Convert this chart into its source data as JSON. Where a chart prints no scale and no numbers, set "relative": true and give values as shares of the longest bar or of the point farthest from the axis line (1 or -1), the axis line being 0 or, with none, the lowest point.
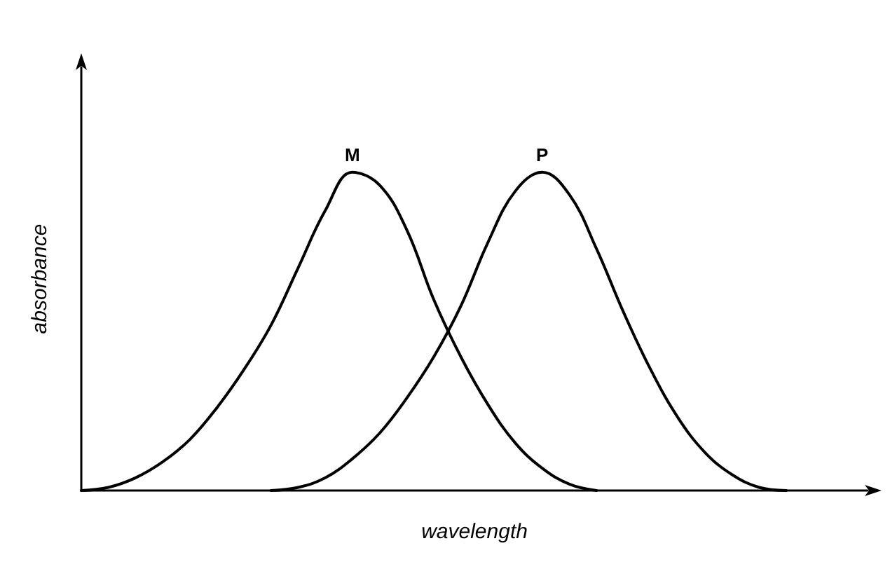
{
  "chart_data": {
    "type": "line",
    "xlabel": "wavelength",
    "ylabel": "absorbance",
    "relative": true,
    "legend": false,
    "grid": false,
    "marker": "none",
    "line_style": "solid",
    "categories": [
      null,
      null,
      null,
      null,
      null,
      null,
      null,
      null,
      null,
      null,
      null,
      null,
      null,
      null,
      null,
      null,
      null,
      null,
      null,
      null,
      null,
      null,
      null,
      null,
      null,
      null,
      null,
      null,
      null,
      null
    ],
    "series": [
      {
        "name": "M",
        "color": "#000000",
        "values": [
          0,
          0.01,
          0.04,
          0.09,
          0.16,
          0.26,
          0.38,
          0.52,
          0.7,
          0.88,
          1.0,
          0.96,
          0.82,
          0.6,
          0.42,
          0.27,
          0.15,
          0.07,
          0.02,
          0,
          null,
          null,
          null,
          null,
          null,
          null,
          null,
          null,
          null,
          null
        ]
      },
      {
        "name": "P",
        "color": "#000000",
        "values": [
          null,
          null,
          null,
          null,
          null,
          null,
          null,
          0,
          0.01,
          0.04,
          0.1,
          0.18,
          0.29,
          0.42,
          0.58,
          0.78,
          0.94,
          1.0,
          0.93,
          0.76,
          0.56,
          0.38,
          0.23,
          0.12,
          0.05,
          0.01,
          0,
          null,
          null,
          null
        ]
      }
    ]
  }
}
